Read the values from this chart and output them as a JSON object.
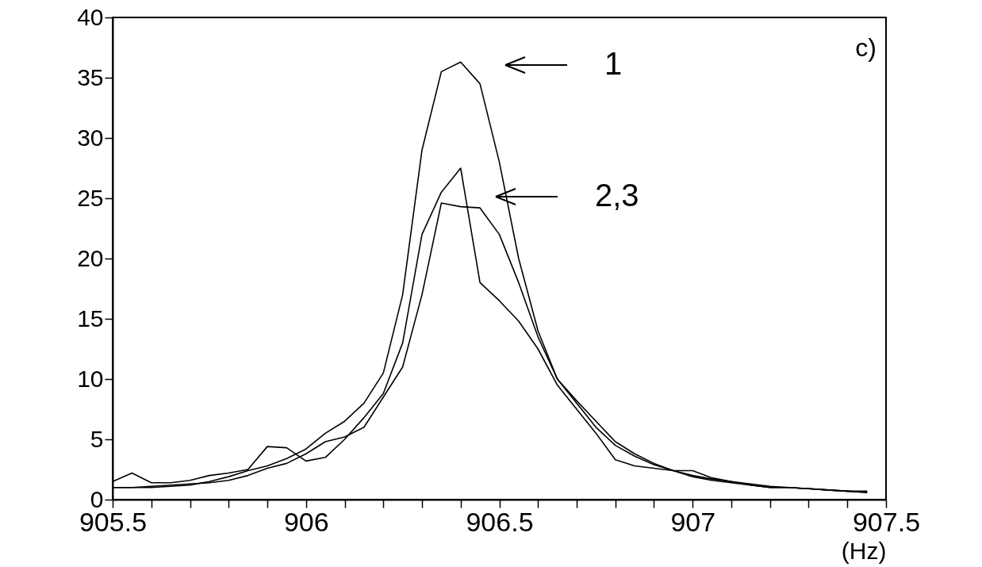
{
  "chart_data": {
    "type": "line",
    "xlabel": "(Hz)",
    "x": [
      905.5,
      905.55,
      905.6,
      905.65,
      905.7,
      905.75,
      905.8,
      905.85,
      905.9,
      905.95,
      906,
      906.05,
      906.1,
      906.15,
      906.2,
      906.25,
      906.3,
      906.35,
      906.4,
      906.45,
      906.5,
      906.55,
      906.6,
      906.65,
      906.7,
      906.75,
      906.8,
      906.85,
      906.9,
      906.95,
      907,
      907.05,
      907.1,
      907.15,
      907.2,
      907.25,
      907.3,
      907.35,
      907.4,
      907.45
    ],
    "series": [
      {
        "color": "#000000",
        "values": [
          1.0,
          1.0,
          1.0,
          1.1,
          1.2,
          1.5,
          1.9,
          2.4,
          2.8,
          3.4,
          4.2,
          5.5,
          6.5,
          8.0,
          10.5,
          17,
          29,
          35.5,
          36.3,
          34.5,
          28,
          20,
          14,
          10,
          8,
          6,
          4.5,
          3.6,
          2.9,
          2.4,
          2.0,
          1.7,
          1.5,
          1.3,
          1.1,
          1.0,
          0.9,
          0.8,
          0.7,
          0.6
        ]
      },
      {
        "color": "#000000",
        "values": [
          1.5,
          2.2,
          1.4,
          1.4,
          1.6,
          2.0,
          2.2,
          2.5,
          4.4,
          4.3,
          3.2,
          3.5,
          5.0,
          6.8,
          8.8,
          13,
          22,
          25.5,
          27.5,
          18,
          16.5,
          14.8,
          12.5,
          9.5,
          7.5,
          5.5,
          3.3,
          2.8,
          2.6,
          2.4,
          2.4,
          1.8,
          1.5,
          1.2,
          1.0,
          1.0,
          0.9,
          0.8,
          0.7,
          0.7
        ]
      },
      {
        "color": "#000000",
        "values": [
          1.0,
          1.0,
          1.1,
          1.2,
          1.3,
          1.4,
          1.6,
          2.0,
          2.6,
          3.0,
          3.8,
          4.8,
          5.2,
          6.0,
          8.5,
          11,
          17,
          24.6,
          24.3,
          24.2,
          22,
          18,
          13.5,
          10,
          8.2,
          6.5,
          4.8,
          3.8,
          3.0,
          2.4,
          1.9,
          1.6,
          1.4,
          1.2,
          1.0,
          1.0,
          0.9,
          0.8,
          0.7,
          0.6
        ]
      }
    ],
    "xlim": [
      905.5,
      907.5
    ],
    "xticks": [
      905.5,
      {
        "value": 905.6,
        "label": null
      },
      {
        "value": 905.7,
        "label": null
      },
      {
        "value": 905.8,
        "label": null
      },
      {
        "value": 905.9,
        "label": null
      },
      906,
      {
        "value": 906.1,
        "label": null
      },
      {
        "value": 906.2,
        "label": null
      },
      {
        "value": 906.3,
        "label": null
      },
      {
        "value": 906.4,
        "label": null
      },
      906.5,
      {
        "value": 906.6,
        "label": null
      },
      {
        "value": 906.7,
        "label": null
      },
      {
        "value": 906.8,
        "label": null
      },
      {
        "value": 906.9,
        "label": null
      },
      907,
      {
        "value": 907.1,
        "label": null
      },
      {
        "value": 907.2,
        "label": null
      },
      {
        "value": 907.3,
        "label": null
      },
      {
        "value": 907.4,
        "label": null
      },
      907.5
    ],
    "ylim": [
      0,
      40
    ],
    "yticks": [
      0,
      5,
      10,
      15,
      20,
      25,
      30,
      35,
      40
    ],
    "grid": false,
    "marker": "none",
    "line_style": "solid",
    "annotations": [
      "1",
      "2,3",
      "c)"
    ]
  }
}
